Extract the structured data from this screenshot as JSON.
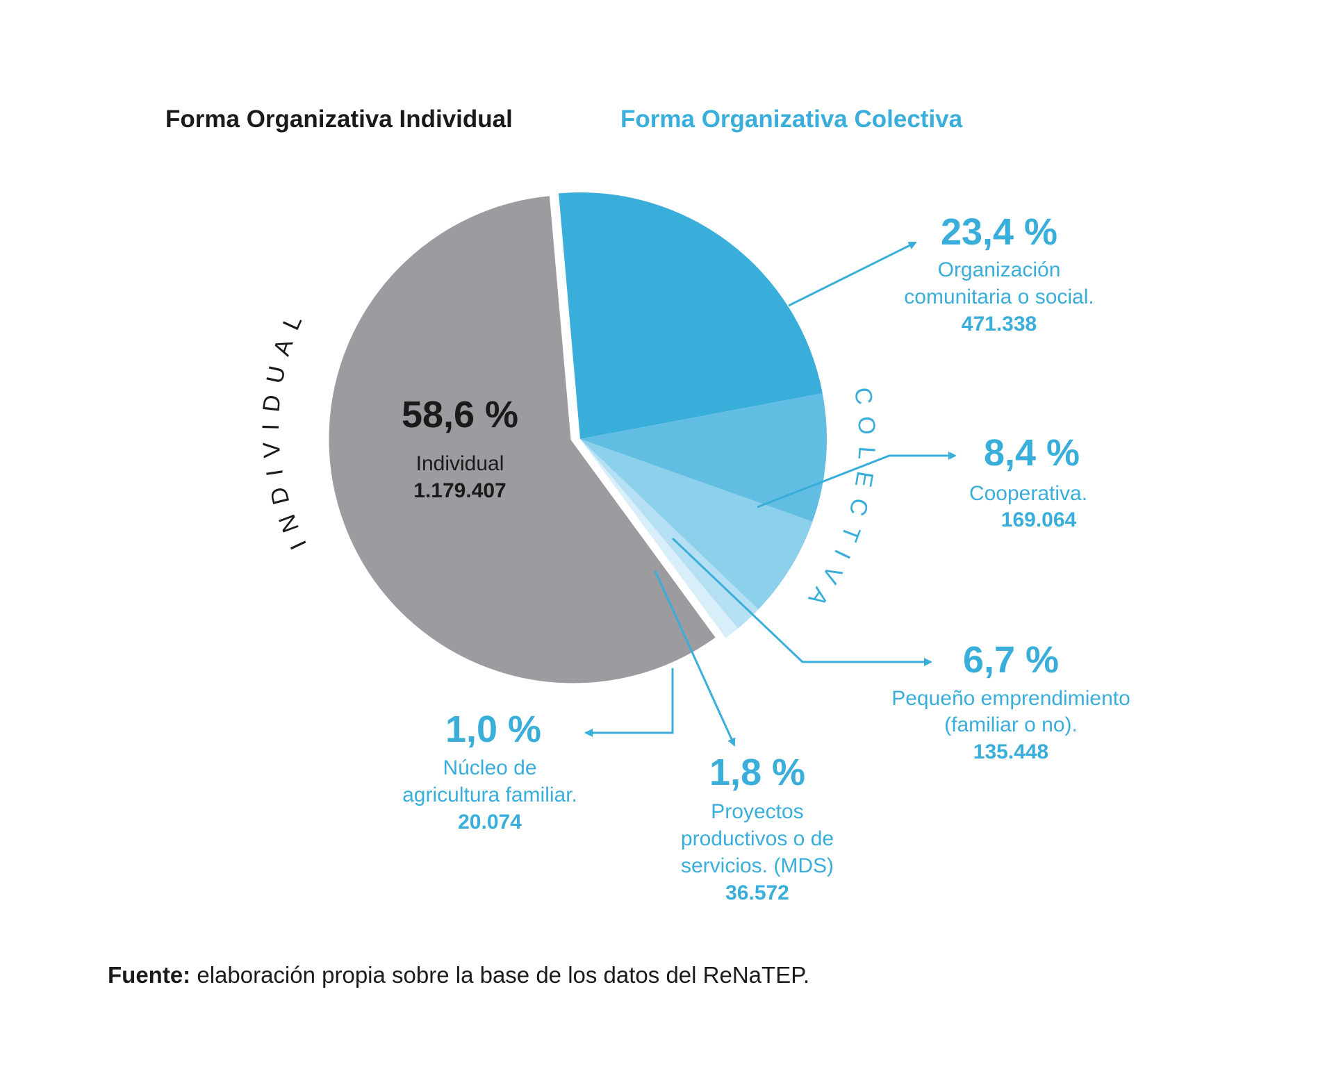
{
  "header": {
    "individual_title": "Forma Organizativa Individual",
    "colectiva_title": "Forma Organizativa Colectiva"
  },
  "arc_labels": {
    "individual": "INDIVIDUAL",
    "colectiva": "COLECTIVA"
  },
  "colors": {
    "individual_title": "#1a1a1a",
    "colectiva_title": "#3aaedb",
    "label_text": "#3aaedb",
    "arrow": "#3aaedb",
    "individual_slice": "#9b9ba0"
  },
  "chart_data": {
    "type": "pie",
    "slices": [
      {
        "key": "individual",
        "percent_label": "58,6 %",
        "value": 58.6,
        "name": "Individual",
        "count": "1.179.407",
        "color": "#9b9ba0",
        "group": "individual"
      },
      {
        "key": "organizacion",
        "percent_label": "23,4 %",
        "value": 23.4,
        "name": "Organización comunitaria o social.",
        "name_lines": [
          "Organización",
          "comunitaria o social."
        ],
        "count": "471.338",
        "color": "#3aaedb",
        "group": "colectiva"
      },
      {
        "key": "cooperativa",
        "percent_label": "8,4 %",
        "value": 8.4,
        "name": "Cooperativa.",
        "name_lines": [
          "Cooperativa."
        ],
        "count": "169.064",
        "color": "#62bde3",
        "group": "colectiva"
      },
      {
        "key": "emprendimiento",
        "percent_label": "6,7 %",
        "value": 6.7,
        "name": "Pequeño emprendimiento (familiar o no).",
        "name_lines": [
          "Pequeño emprendimiento",
          "(familiar o no)."
        ],
        "count": "135.448",
        "color": "#8dd0ec",
        "group": "colectiva"
      },
      {
        "key": "proyectos",
        "percent_label": "1,8 %",
        "value": 1.8,
        "name": "Proyectos productivos o de servicios. (MDS)",
        "name_lines": [
          "Proyectos",
          "productivos o de",
          "servicios. (MDS)"
        ],
        "count": "36.572",
        "color": "#b5e0f3",
        "group": "colectiva"
      },
      {
        "key": "nucleo",
        "percent_label": "1,0 %",
        "value": 1.0,
        "name": "Núcleo de agricultura familiar.",
        "name_lines": [
          "Núcleo de",
          "agricultura familiar."
        ],
        "count": "20.074",
        "color": "#d8eef9",
        "group": "colectiva"
      }
    ]
  },
  "source": {
    "label": "Fuente:",
    "text": " elaboración propia sobre la base de los datos del ReNaTEP."
  }
}
